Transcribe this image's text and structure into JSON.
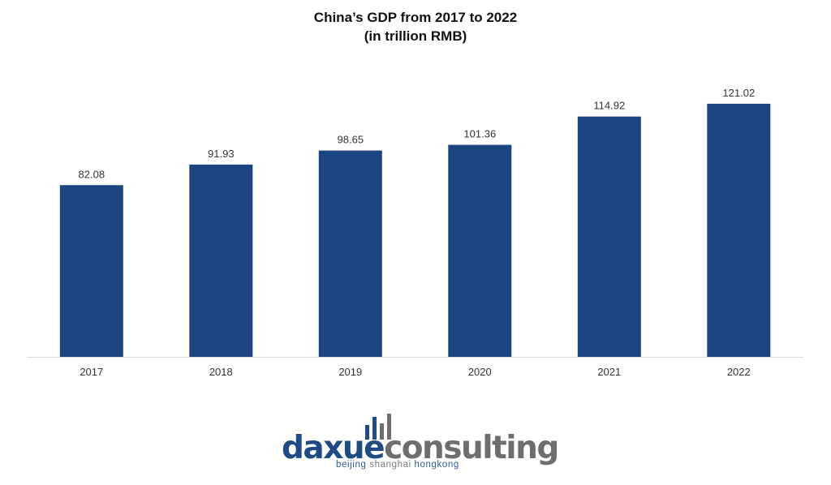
{
  "chart_data": {
    "type": "bar",
    "title_lines": [
      "China’s GDP from 2017 to 2022",
      "(in trillion RMB)"
    ],
    "xlabel": "",
    "ylabel": "",
    "categories": [
      "2017",
      "2018",
      "2019",
      "2020",
      "2021",
      "2022"
    ],
    "values": [
      82.08,
      91.93,
      98.65,
      101.36,
      114.92,
      121.02
    ],
    "data_labels": [
      "82.08",
      "91.93",
      "98.65",
      "101.36",
      "114.92",
      "121.02"
    ],
    "ylim": [
      0,
      130
    ],
    "grid": false,
    "legend": "none",
    "bar_color": "#1a4580",
    "axis_color": "#d9d9d9"
  },
  "logo": {
    "wordmark_part1": "daxue",
    "wordmark_part2": "consulting",
    "tagline_part1": "beijing ",
    "tagline_part2": "shanghai ",
    "tagline_part3": "hongkong",
    "primary_color": "#1e4a86",
    "secondary_color": "#6e6e6e"
  }
}
